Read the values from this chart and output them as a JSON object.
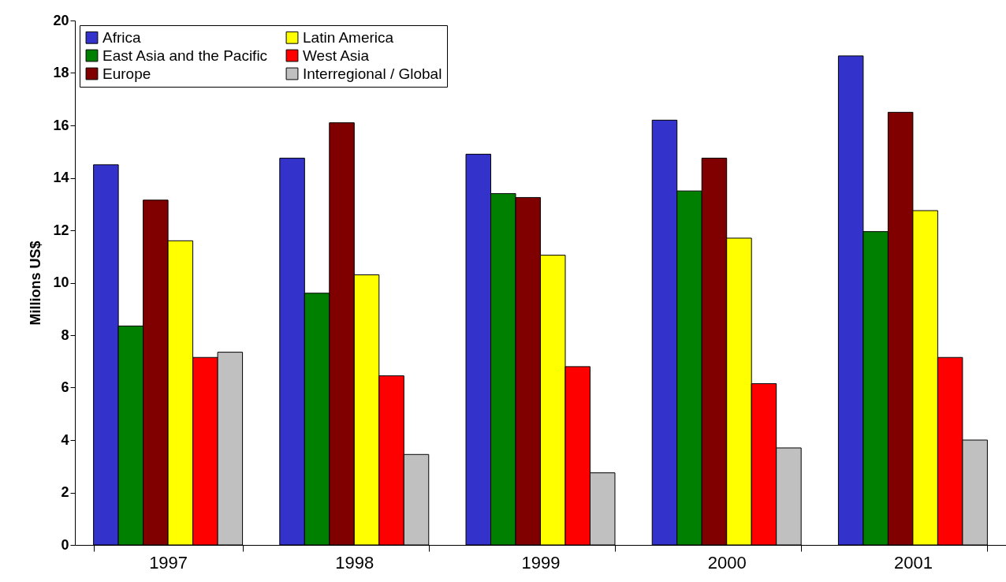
{
  "chart_data": {
    "type": "bar",
    "ylabel": "Millions US$",
    "categories": [
      "1997",
      "1998",
      "1999",
      "2000",
      "2001"
    ],
    "series": [
      {
        "name": "Africa",
        "color": "#3333cc",
        "values": [
          14.5,
          14.75,
          14.9,
          16.2,
          18.65
        ]
      },
      {
        "name": "East Asia and the Pacific",
        "color": "#008000",
        "values": [
          8.35,
          9.6,
          13.4,
          13.5,
          11.95
        ]
      },
      {
        "name": "Europe",
        "color": "#800000",
        "values": [
          13.15,
          16.1,
          13.25,
          14.75,
          16.5
        ]
      },
      {
        "name": "Latin America",
        "color": "#ffff00",
        "values": [
          11.6,
          10.3,
          11.05,
          11.7,
          12.75
        ]
      },
      {
        "name": "West Asia",
        "color": "#ff0000",
        "values": [
          7.15,
          6.45,
          6.8,
          6.15,
          7.15
        ]
      },
      {
        "name": "Interregional / Global",
        "color": "#c0c0c0",
        "values": [
          7.35,
          3.45,
          2.75,
          3.7,
          4.0
        ]
      }
    ],
    "ylim": [
      0,
      20
    ],
    "yticks": [
      0,
      2,
      4,
      6,
      8,
      10,
      12,
      14,
      16,
      18,
      20
    ],
    "grid": false,
    "legend": "top left"
  }
}
